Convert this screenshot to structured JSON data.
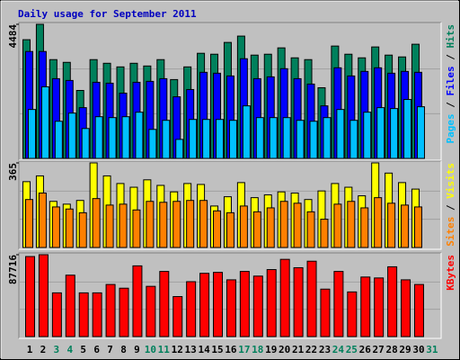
{
  "chart_data": [
    {
      "type": "bar",
      "title": "Daily usage for September 2011",
      "ylim": [
        0,
        4484
      ],
      "yticks": [
        4484
      ],
      "legend_separator": " / ",
      "series": [
        {
          "name": "Hits",
          "color": "#00805c",
          "values": [
            3969,
            4484,
            3303,
            3212,
            2272,
            3303,
            3181,
            3060,
            3181,
            3090,
            3303,
            2636,
            3060,
            3515,
            3484,
            3878,
            4090,
            3454,
            3484,
            3696,
            3363,
            3303,
            2363,
            3757,
            3484,
            3363,
            3727,
            3454,
            3393,
            3818,
            null
          ]
        },
        {
          "name": "Files",
          "color": "#0000ff",
          "values": [
            3575,
            3575,
            2666,
            2606,
            1697,
            2545,
            2515,
            2182,
            2545,
            2576,
            2666,
            2060,
            2303,
            2879,
            2848,
            2757,
            3333,
            2666,
            2727,
            3000,
            2666,
            2485,
            1757,
            3030,
            2757,
            2909,
            3030,
            2848,
            2909,
            2879,
            null
          ]
        },
        {
          "name": "Pages",
          "color": "#00c0ff",
          "values": [
            1636,
            2394,
            1242,
            1515,
            1000,
            1394,
            1364,
            1394,
            1545,
            970,
            1273,
            636,
            1303,
            1303,
            1303,
            1273,
            1757,
            1364,
            1364,
            1364,
            1273,
            1242,
            1364,
            1636,
            1273,
            1545,
            1697,
            1667,
            1970,
            1727,
            null
          ]
        }
      ]
    },
    {
      "type": "bar",
      "ylim": [
        0,
        365
      ],
      "yticks": [
        365
      ],
      "legend_separator": " / ",
      "series": [
        {
          "name": "Visits",
          "color": "#ffff00",
          "values": [
            284,
            309,
            199,
            187,
            203,
            365,
            309,
            276,
            260,
            292,
            268,
            240,
            276,
            272,
            179,
            219,
            280,
            215,
            227,
            240,
            235,
            207,
            244,
            276,
            260,
            223,
            365,
            321,
            280,
            252,
            null
          ]
        },
        {
          "name": "Sites",
          "color": "#ff8000",
          "values": [
            207,
            235,
            175,
            166,
            150,
            211,
            183,
            187,
            162,
            199,
            195,
            199,
            203,
            203,
            158,
            150,
            179,
            154,
            171,
            199,
            191,
            154,
            122,
            187,
            199,
            171,
            215,
            191,
            183,
            175,
            null
          ]
        }
      ]
    },
    {
      "type": "bar",
      "ylim": [
        0,
        87716
      ],
      "yticks": [
        87716
      ],
      "categories": [
        "1",
        "2",
        "3",
        "4",
        "5",
        "6",
        "7",
        "8",
        "9",
        "10",
        "11",
        "12",
        "13",
        "14",
        "15",
        "16",
        "17",
        "18",
        "19",
        "20",
        "21",
        "22",
        "23",
        "24",
        "25",
        "26",
        "27",
        "28",
        "29",
        "30",
        "31"
      ],
      "category_colors": [
        "#000000",
        "#000000",
        "#00805c",
        "#00805c",
        "#000000",
        "#000000",
        "#000000",
        "#000000",
        "#000000",
        "#00805c",
        "#00805c",
        "#000000",
        "#000000",
        "#000000",
        "#000000",
        "#000000",
        "#00805c",
        "#00805c",
        "#000000",
        "#000000",
        "#000000",
        "#000000",
        "#000000",
        "#00805c",
        "#00805c",
        "#000000",
        "#000000",
        "#000000",
        "#000000",
        "#000000",
        "#00805c"
      ],
      "series": [
        {
          "name": "KBytes",
          "color": "#ff0000",
          "values": [
            85742,
            87716,
            46859,
            65802,
            46859,
            46859,
            55832,
            51844,
            75772,
            53838,
            69790,
            42871,
            58823,
            67796,
            68793,
            60817,
            69790,
            64805,
            71784,
            82751,
            73778,
            80757,
            50847,
            69790,
            47856,
            63808,
            62811,
            74775,
            60817,
            55832,
            null
          ]
        }
      ]
    }
  ]
}
